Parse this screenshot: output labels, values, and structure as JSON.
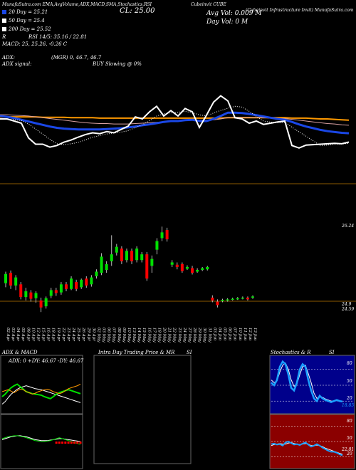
{
  "header": {
    "title_left": "MunafaSutra.com EMA,AvgVolume,ADX,MACD,SMA,Stochastics,RSI",
    "symbol": "Cubeinvit",
    "price": "CL: 25.00",
    "company": "Cubeinvit CUBE",
    "company_sub": "(Cubeinvit Infrastructure Invit) MunafaSutra.com",
    "ema20": "20 Day = 25.21",
    "ema50": "50 Day = 25.4",
    "ema200": "200 Day = 25.52",
    "rsi_line": "RSI 14/5: 35.16 / 22.81",
    "macd_line": "MACD: 25, 25.26, -0.26 C",
    "adx_label": "ADX:",
    "adx_signal": "ADX signal:",
    "adx_values": "(MGR) 0, 46.7, 46.7",
    "buy_signal": "BUY Slowing @ 0%",
    "avg_vol": "Avg Vol: 0.009 M",
    "day_vol": "Day Vol: 0   M",
    "r_letter": "R"
  },
  "colors": {
    "ema20": "#1a47e6",
    "ema50": "#ffffff",
    "ema200": "#ffffff",
    "up": "#00e000",
    "down": "#ff0000",
    "orange": "#ff9900",
    "maroon": "#8b1a1a"
  },
  "price_axis": {
    "high_label": "26.24",
    "mid_label": "24.9",
    "low_label": "24.59"
  },
  "date_labels": [
    "02 Apr",
    "03 Apr",
    "04 Apr",
    "05 Apr",
    "08 Apr",
    "10 Apr",
    "12 Apr",
    "15 Apr",
    "16 Apr",
    "18 Apr",
    "19 Apr",
    "22 Apr",
    "23 Apr",
    "24 Apr",
    "25 Apr",
    "26 Apr",
    "29 Apr",
    "30 Apr",
    "02 May",
    "03 May",
    "06 May",
    "07 May",
    "08 May",
    "09 May",
    "10 May",
    "13 May",
    "14 May",
    "15 May",
    "16 May",
    "17 May",
    "18 May",
    "20 May",
    "21 May",
    "22 May",
    "23 May",
    "24 May",
    "27 May",
    "28 May",
    "29 May",
    "30 May",
    "31 May",
    "03 Jun",
    "04 Jun",
    "05 Jun",
    "06 Jun",
    "07 Jun",
    "10 Jun",
    "11 Jun",
    "12 Jun",
    "13 Jun"
  ],
  "panels": {
    "adx_title": "ADX  & MACD",
    "adx_legend": "ADX: 0   +DY: 46.67  -DY: 46.67",
    "intra_title": "Intra  Day Trading Price  & MR",
    "si_title": "SI",
    "stoch_title": "Stochastics & R",
    "stoch_si": "SI",
    "stoch_ticks": [
      "80",
      "50",
      "20"
    ],
    "stoch_val": "18.85",
    "rsi_ticks": [
      "80",
      "50",
      "20"
    ],
    "rsi_val": "22.81"
  },
  "chart_data": {
    "type": "candlestick",
    "price_range": [
      24.55,
      26.4
    ],
    "candles": [
      {
        "o": 25.22,
        "c": 25.38,
        "h": 25.42,
        "l": 25.15
      },
      {
        "o": 25.4,
        "c": 25.18,
        "h": 25.44,
        "l": 25.12
      },
      {
        "o": 25.18,
        "c": 25.32,
        "h": 25.36,
        "l": 25.1
      },
      {
        "o": 25.2,
        "c": 24.98,
        "h": 25.24,
        "l": 24.94
      },
      {
        "o": 24.98,
        "c": 25.08,
        "h": 25.14,
        "l": 24.92
      },
      {
        "o": 25.06,
        "c": 24.95,
        "h": 25.1,
        "l": 24.9
      },
      {
        "o": 24.96,
        "c": 25.05,
        "h": 25.08,
        "l": 24.88
      },
      {
        "o": 24.92,
        "c": 24.8,
        "h": 24.97,
        "l": 24.72
      },
      {
        "o": 24.82,
        "c": 24.96,
        "h": 24.99,
        "l": 24.78
      },
      {
        "o": 25.0,
        "c": 25.1,
        "h": 25.14,
        "l": 24.96
      },
      {
        "o": 25.1,
        "c": 25.05,
        "h": 25.14,
        "l": 25.0
      },
      {
        "o": 25.06,
        "c": 25.2,
        "h": 25.24,
        "l": 25.02
      },
      {
        "o": 25.2,
        "c": 25.12,
        "h": 25.24,
        "l": 25.08
      },
      {
        "o": 25.12,
        "c": 25.3,
        "h": 25.34,
        "l": 25.1
      },
      {
        "o": 25.24,
        "c": 25.12,
        "h": 25.28,
        "l": 25.08
      },
      {
        "o": 25.15,
        "c": 25.28,
        "h": 25.3,
        "l": 25.12
      },
      {
        "o": 25.3,
        "c": 25.18,
        "h": 25.34,
        "l": 25.14
      },
      {
        "o": 25.2,
        "c": 25.32,
        "h": 25.36,
        "l": 25.16
      },
      {
        "o": 25.34,
        "c": 25.42,
        "h": 25.46,
        "l": 25.3
      },
      {
        "o": 25.4,
        "c": 25.68,
        "h": 25.74,
        "l": 25.36
      },
      {
        "o": 25.45,
        "c": 25.55,
        "h": 25.6,
        "l": 25.4
      },
      {
        "o": 25.6,
        "c": 25.72,
        "h": 26.05,
        "l": 25.52
      },
      {
        "o": 25.75,
        "c": 25.85,
        "h": 25.9,
        "l": 25.7
      },
      {
        "o": 25.82,
        "c": 25.6,
        "h": 25.86,
        "l": 25.55
      },
      {
        "o": 25.62,
        "c": 25.78,
        "h": 25.82,
        "l": 25.58
      },
      {
        "o": 25.78,
        "c": 25.6,
        "h": 25.82,
        "l": 25.55
      },
      {
        "o": 25.62,
        "c": 25.82,
        "h": 25.86,
        "l": 25.58
      },
      {
        "o": 25.62,
        "c": 25.72,
        "h": 25.76,
        "l": 25.58
      },
      {
        "o": 25.72,
        "c": 25.3,
        "h": 25.76,
        "l": 25.26
      },
      {
        "o": 25.52,
        "c": 25.64,
        "h": 25.7,
        "l": 25.4
      },
      {
        "o": 25.8,
        "c": 25.95,
        "h": 26.0,
        "l": 25.72
      },
      {
        "o": 26.0,
        "c": 26.1,
        "h": 26.2,
        "l": 25.95
      },
      {
        "o": 26.14,
        "c": 25.98,
        "h": 26.18,
        "l": 25.94
      },
      {
        "o": 25.54,
        "c": 25.58,
        "h": 25.62,
        "l": 25.5
      },
      {
        "o": 25.54,
        "c": 25.5,
        "h": 25.58,
        "l": 25.46
      },
      {
        "o": 25.55,
        "c": 25.43,
        "h": 25.58,
        "l": 25.4
      },
      {
        "o": 25.47,
        "c": 25.5,
        "h": 25.53,
        "l": 25.45
      },
      {
        "o": 25.48,
        "c": 25.4,
        "h": 25.52,
        "l": 25.37
      },
      {
        "o": 25.42,
        "c": 25.45,
        "h": 25.48,
        "l": 25.4
      },
      {
        "o": 25.45,
        "c": 25.48,
        "h": 25.5,
        "l": 25.43
      },
      {
        "o": 25.46,
        "c": 25.5,
        "h": 25.52,
        "l": 25.44
      },
      {
        "o": 24.97,
        "c": 24.92,
        "h": 25.01,
        "l": 24.89
      },
      {
        "o": 24.9,
        "c": 24.84,
        "h": 24.94,
        "l": 24.8
      },
      {
        "o": 24.91,
        "c": 24.93,
        "h": 24.95,
        "l": 24.89
      },
      {
        "o": 24.92,
        "c": 24.94,
        "h": 24.96,
        "l": 24.9
      },
      {
        "o": 24.94,
        "c": 24.95,
        "h": 24.97,
        "l": 24.92
      },
      {
        "o": 24.94,
        "c": 24.96,
        "h": 24.98,
        "l": 24.93
      },
      {
        "o": 24.96,
        "c": 24.97,
        "h": 24.99,
        "l": 24.94
      },
      {
        "o": 24.97,
        "c": 24.94,
        "h": 24.99,
        "l": 24.92
      },
      {
        "o": 24.97,
        "c": 24.99,
        "h": 25.01,
        "l": 24.95
      }
    ],
    "ema_range": [
      24.4,
      26.6
    ],
    "ema20": [
      25.62,
      25.6,
      25.57,
      25.53,
      25.49,
      25.45,
      25.41,
      25.37,
      25.34,
      25.32,
      25.31,
      25.3,
      25.3,
      25.3,
      25.3,
      25.31,
      25.32,
      25.33,
      25.35,
      25.37,
      25.4,
      25.42,
      25.45,
      25.48,
      25.5,
      25.5,
      25.52,
      25.53,
      25.5,
      25.5,
      25.55,
      25.62,
      25.7,
      25.7,
      25.69,
      25.67,
      25.64,
      25.61,
      25.58,
      25.55,
      25.53,
      25.48,
      25.42,
      25.37,
      25.33,
      25.29,
      25.26,
      25.24,
      25.22,
      25.21
    ],
    "ema50": [
      25.65,
      25.65,
      25.64,
      25.63,
      25.62,
      25.6,
      25.58,
      25.56,
      25.54,
      25.52,
      25.5,
      25.48,
      25.46,
      25.45,
      25.44,
      25.44,
      25.43,
      25.43,
      25.43,
      25.44,
      25.45,
      25.46,
      25.47,
      25.48,
      25.49,
      25.5,
      25.51,
      25.52,
      25.52,
      25.52,
      25.53,
      25.55,
      25.58,
      25.59,
      25.59,
      25.59,
      25.58,
      25.58,
      25.57,
      25.56,
      25.56,
      25.54,
      25.52,
      25.5,
      25.48,
      25.46,
      25.44,
      25.43,
      25.41,
      25.4
    ],
    "ema200": [
      25.6,
      25.6,
      25.6,
      25.6,
      25.6,
      25.6,
      25.59,
      25.59,
      25.59,
      25.59,
      25.58,
      25.58,
      25.58,
      25.58,
      25.57,
      25.57,
      25.57,
      25.57,
      25.57,
      25.57,
      25.57,
      25.57,
      25.57,
      25.57,
      25.57,
      25.57,
      25.57,
      25.57,
      25.57,
      25.57,
      25.57,
      25.57,
      25.58,
      25.58,
      25.58,
      25.58,
      25.58,
      25.58,
      25.58,
      25.58,
      25.58,
      25.57,
      25.57,
      25.57,
      25.56,
      25.55,
      25.55,
      25.54,
      25.53,
      25.52
    ],
    "close": [
      25.55,
      25.55,
      25.5,
      25.45,
      25.1,
      24.95,
      24.95,
      24.88,
      24.92,
      25.0,
      25.05,
      25.12,
      25.18,
      25.22,
      25.2,
      25.25,
      25.22,
      25.3,
      25.38,
      25.6,
      25.55,
      25.72,
      25.85,
      25.62,
      25.75,
      25.62,
      25.8,
      25.72,
      25.35,
      25.64,
      25.95,
      26.1,
      25.98,
      25.58,
      25.55,
      25.45,
      25.5,
      25.42,
      25.45,
      25.48,
      25.5,
      24.92,
      24.86,
      24.93,
      24.94,
      24.95,
      24.96,
      24.97,
      24.96,
      25.0
    ],
    "adx": {
      "plus_di": 46.67,
      "minus_di": 46.67,
      "adx": 0
    },
    "stochastic": {
      "last": 18.85
    },
    "rsi": {
      "last": 22.81
    }
  }
}
